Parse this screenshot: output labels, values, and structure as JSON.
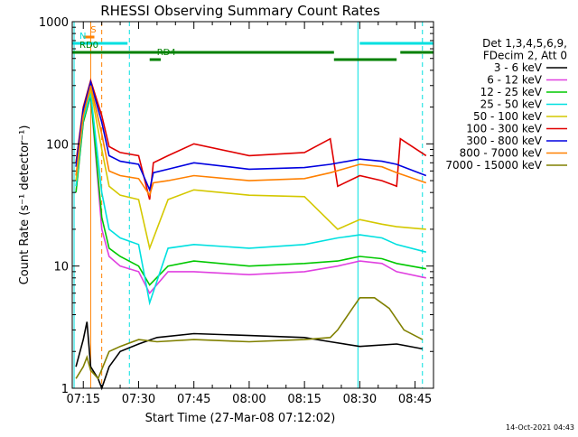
{
  "chart_data": {
    "type": "line",
    "title": "RHESSI Observing Summary Count Rates",
    "xlabel": "Start Time (27-Mar-08 07:12:02)",
    "ylabel": "Count Rate (s⁻¹ detector⁻¹)",
    "y_scale": "log",
    "ylim": [
      1,
      1000
    ],
    "xlim": [
      "07:12",
      "08:50"
    ],
    "x_ticks": [
      "07:15",
      "07:30",
      "07:45",
      "08:00",
      "08:15",
      "08:30",
      "08:45"
    ],
    "y_ticks": [
      "1",
      "10",
      "100",
      "1000"
    ],
    "timestamp": "14-Oct-2021 04:43",
    "legend": {
      "placement": "right",
      "header": [
        "Det 1,3,4,5,6,9,",
        "FDecim 2, Att 0"
      ]
    },
    "series": [
      {
        "name": "3 - 6 keV",
        "color": "#000000",
        "x": [
          "07:13",
          "07:15",
          "07:16",
          "07:17",
          "07:19",
          "07:20",
          "07:22",
          "07:25",
          "07:30",
          "07:35",
          "07:45",
          "08:00",
          "08:15",
          "08:22",
          "08:30",
          "08:40",
          "08:47"
        ],
        "y": [
          1.5,
          2.5,
          3.5,
          1.5,
          1.2,
          1.0,
          1.5,
          2.0,
          2.3,
          2.6,
          2.8,
          2.7,
          2.6,
          2.4,
          2.2,
          2.3,
          2.1
        ]
      },
      {
        "name": "6 - 12 keV",
        "color": "#e040e0",
        "x": [
          "07:13",
          "07:15",
          "07:17",
          "07:20",
          "07:22",
          "07:25",
          "07:30",
          "07:33",
          "07:38",
          "07:45",
          "08:00",
          "08:15",
          "08:24",
          "08:30",
          "08:36",
          "08:40",
          "08:48"
        ],
        "y": [
          40,
          150,
          250,
          20,
          12,
          10,
          9,
          6,
          9,
          9,
          8.5,
          9,
          10,
          11,
          10.5,
          9,
          8
        ]
      },
      {
        "name": "12 - 25 keV",
        "color": "#00c800",
        "x": [
          "07:13",
          "07:15",
          "07:17",
          "07:20",
          "07:22",
          "07:25",
          "07:30",
          "07:33",
          "07:38",
          "07:45",
          "08:00",
          "08:15",
          "08:24",
          "08:30",
          "08:36",
          "08:40",
          "08:48"
        ],
        "y": [
          40,
          150,
          250,
          25,
          14,
          12,
          10,
          7,
          10,
          11,
          10,
          10.5,
          11,
          12,
          11.5,
          10.5,
          9.5
        ]
      },
      {
        "name": "25 - 50 keV",
        "color": "#00e0e0",
        "x": [
          "07:13",
          "07:15",
          "07:17",
          "07:20",
          "07:22",
          "07:25",
          "07:30",
          "07:33",
          "07:38",
          "07:45",
          "08:00",
          "08:15",
          "08:24",
          "08:30",
          "08:36",
          "08:40",
          "08:48"
        ],
        "y": [
          45,
          160,
          260,
          40,
          20,
          17,
          15,
          5,
          14,
          15,
          14,
          15,
          17,
          18,
          17,
          15,
          13
        ]
      },
      {
        "name": "50 - 100 keV",
        "color": "#d4c800",
        "x": [
          "07:13",
          "07:15",
          "07:17",
          "07:20",
          "07:22",
          "07:25",
          "07:30",
          "07:33",
          "07:38",
          "07:45",
          "08:00",
          "08:15",
          "08:24",
          "08:30",
          "08:36",
          "08:40",
          "08:48"
        ],
        "y": [
          50,
          180,
          280,
          90,
          45,
          38,
          35,
          14,
          35,
          42,
          38,
          37,
          20,
          24,
          22,
          21,
          20
        ]
      },
      {
        "name": "100 - 300 keV",
        "color": "#e00000",
        "x": [
          "07:13",
          "07:15",
          "07:17",
          "07:20",
          "07:22",
          "07:25",
          "07:30",
          "07:33",
          "07:34",
          "07:38",
          "07:45",
          "08:00",
          "08:15",
          "08:22",
          "08:24",
          "08:30",
          "08:36",
          "08:40",
          "08:41",
          "08:48"
        ],
        "y": [
          70,
          200,
          330,
          170,
          95,
          85,
          80,
          35,
          70,
          80,
          100,
          80,
          85,
          110,
          45,
          55,
          50,
          45,
          110,
          80
        ]
      },
      {
        "name": "300 - 800 keV",
        "color": "#0000e0",
        "x": [
          "07:13",
          "07:15",
          "07:17",
          "07:20",
          "07:22",
          "07:25",
          "07:30",
          "07:33",
          "07:34",
          "07:38",
          "07:45",
          "08:00",
          "08:15",
          "08:22",
          "08:30",
          "08:36",
          "08:40",
          "08:48"
        ],
        "y": [
          65,
          190,
          320,
          150,
          80,
          72,
          68,
          42,
          58,
          62,
          70,
          62,
          64,
          68,
          75,
          72,
          68,
          55
        ]
      },
      {
        "name": "800 - 7000 keV",
        "color": "#ff8000",
        "x": [
          "07:13",
          "07:15",
          "07:17",
          "07:20",
          "07:22",
          "07:25",
          "07:30",
          "07:33",
          "07:34",
          "07:38",
          "07:45",
          "08:00",
          "08:15",
          "08:22",
          "08:30",
          "08:36",
          "08:40",
          "08:48"
        ],
        "y": [
          55,
          170,
          300,
          120,
          60,
          55,
          52,
          38,
          48,
          50,
          55,
          50,
          52,
          58,
          68,
          65,
          58,
          48
        ]
      },
      {
        "name": "7000 - 15000 keV",
        "color": "#808000",
        "x": [
          "07:13",
          "07:15",
          "07:16",
          "07:17",
          "07:19",
          "07:22",
          "07:25",
          "07:30",
          "07:35",
          "07:45",
          "08:00",
          "08:15",
          "08:22",
          "08:24",
          "08:28",
          "08:30",
          "08:34",
          "08:38",
          "08:42",
          "08:47"
        ],
        "y": [
          1.2,
          1.5,
          1.8,
          1.4,
          1.2,
          2.0,
          2.2,
          2.5,
          2.4,
          2.5,
          2.4,
          2.5,
          2.6,
          3.0,
          4.5,
          5.5,
          5.5,
          4.5,
          3.0,
          2.5
        ]
      }
    ],
    "annotations": [
      {
        "label": "S",
        "color": "#ff8000",
        "x_start": "07:15",
        "x_end": "07:18",
        "level": 1
      },
      {
        "label": "N",
        "color": "#00e0e0",
        "x_start": "07:12",
        "x_end": "07:27",
        "level": 2
      },
      {
        "label": "",
        "color": "#00e0e0",
        "x_start": "08:30",
        "x_end": "08:50",
        "level": 2
      },
      {
        "label": "RD4",
        "color": "#008000",
        "x_start": "07:33",
        "x_end": "07:36",
        "level": 4
      },
      {
        "label": "RD0",
        "color": "#008000",
        "x_start": "07:12",
        "x_end": "08:23",
        "level": 3
      },
      {
        "label": "",
        "color": "#008000",
        "x_start": "08:23",
        "x_end": "08:40",
        "level": 4
      },
      {
        "label": "",
        "color": "#008000",
        "x_start": "08:41",
        "x_end": "08:50",
        "level": 3
      }
    ],
    "vertical_lines": [
      {
        "x": "07:12:30",
        "color": "#00e0e0",
        "style": "solid"
      },
      {
        "x": "07:17",
        "color": "#ff8000",
        "style": "solid"
      },
      {
        "x": "07:20",
        "color": "#ff8000",
        "style": "dashed"
      },
      {
        "x": "07:27:30",
        "color": "#00e0e0",
        "style": "dashed"
      },
      {
        "x": "08:29:30",
        "color": "#00e0e0",
        "style": "solid"
      },
      {
        "x": "08:47",
        "color": "#00e0e0",
        "style": "dashed"
      }
    ]
  }
}
